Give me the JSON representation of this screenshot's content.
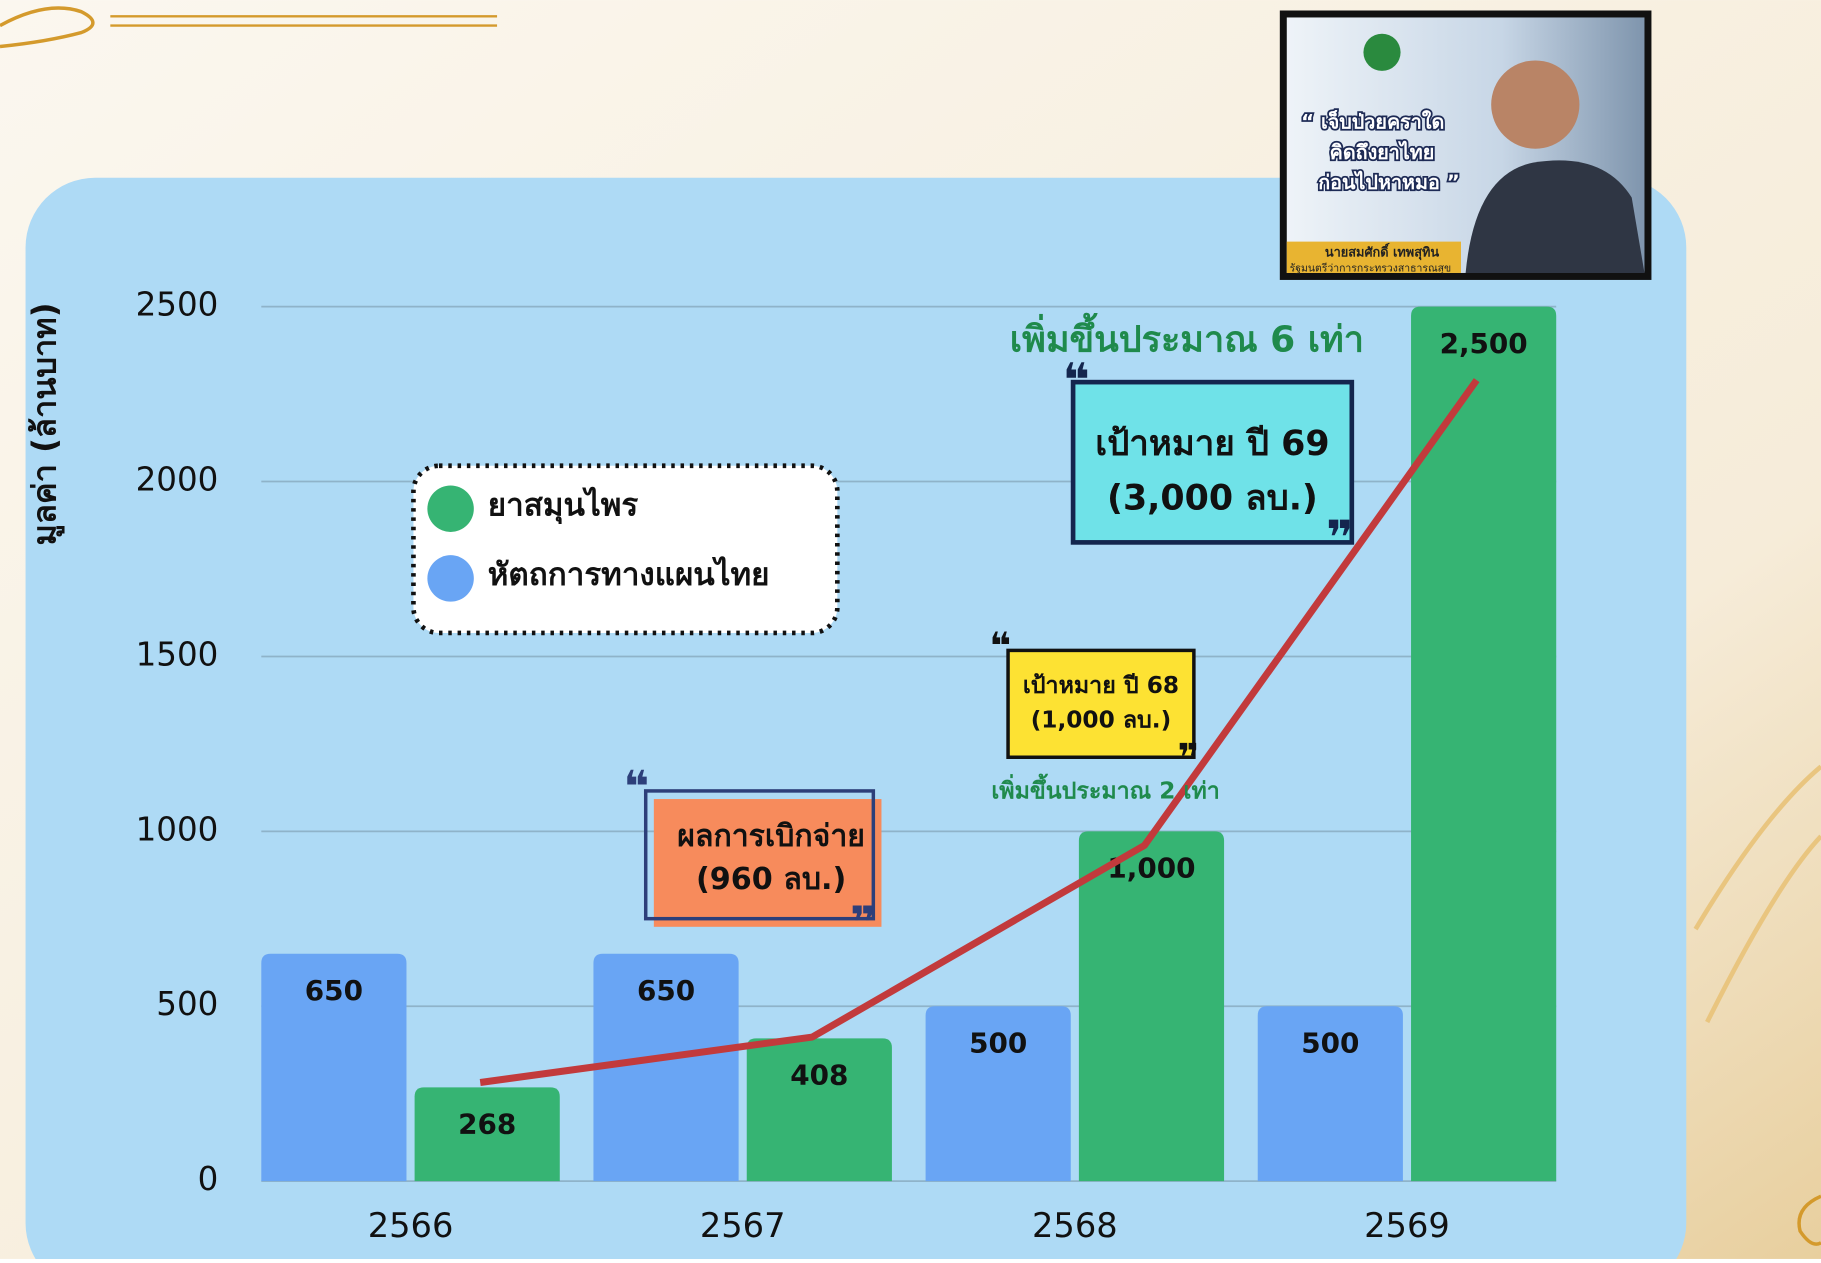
{
  "chart_data": {
    "type": "bar",
    "y_label": "มูลค่า (ล้านบาท)",
    "categories": [
      "2566",
      "2567",
      "2568",
      "2569"
    ],
    "series": [
      {
        "name": "หัตถการทางแผนไทย",
        "color": "#69a5f4",
        "values": [
          650,
          650,
          500,
          500
        ]
      },
      {
        "name": "ยาสมุนไพร",
        "color": "#36b473",
        "values": [
          268,
          408,
          1000,
          2500
        ],
        "value_labels": [
          "268",
          "408",
          "1,000",
          "2,500"
        ]
      },
      {
        "type": "line",
        "color": "#c23a3c",
        "values": [
          282,
          412,
          960,
          2290
        ]
      }
    ],
    "ylim": [
      0,
      2500
    ],
    "yticks": [
      0,
      500,
      1000,
      1500,
      2000,
      2500
    ],
    "grid": true,
    "annotations": [
      "เพิ่มขึ้นประมาณ 6 เท่า",
      "เป้าหมาย ปี 69",
      "(3,000 ลบ.)",
      "เป้าหมาย ปี 68",
      "(1,000 ลบ.)",
      "เพิ่มขึ้นประมาณ 2 เท่า",
      "ผลการเบิกจ่าย",
      "(960 ลบ.)"
    ]
  },
  "photo": {
    "quote": [
      "“ เจ็บป่วยคราใด",
      "คิดถึงยาไทย",
      "ก่อนไปหาหมอ ”"
    ],
    "name": "นายสมศักดิ์ เทพสุทิน",
    "position": "รัฐมนตรีว่าการกระทรวงสาธารณสุข"
  }
}
